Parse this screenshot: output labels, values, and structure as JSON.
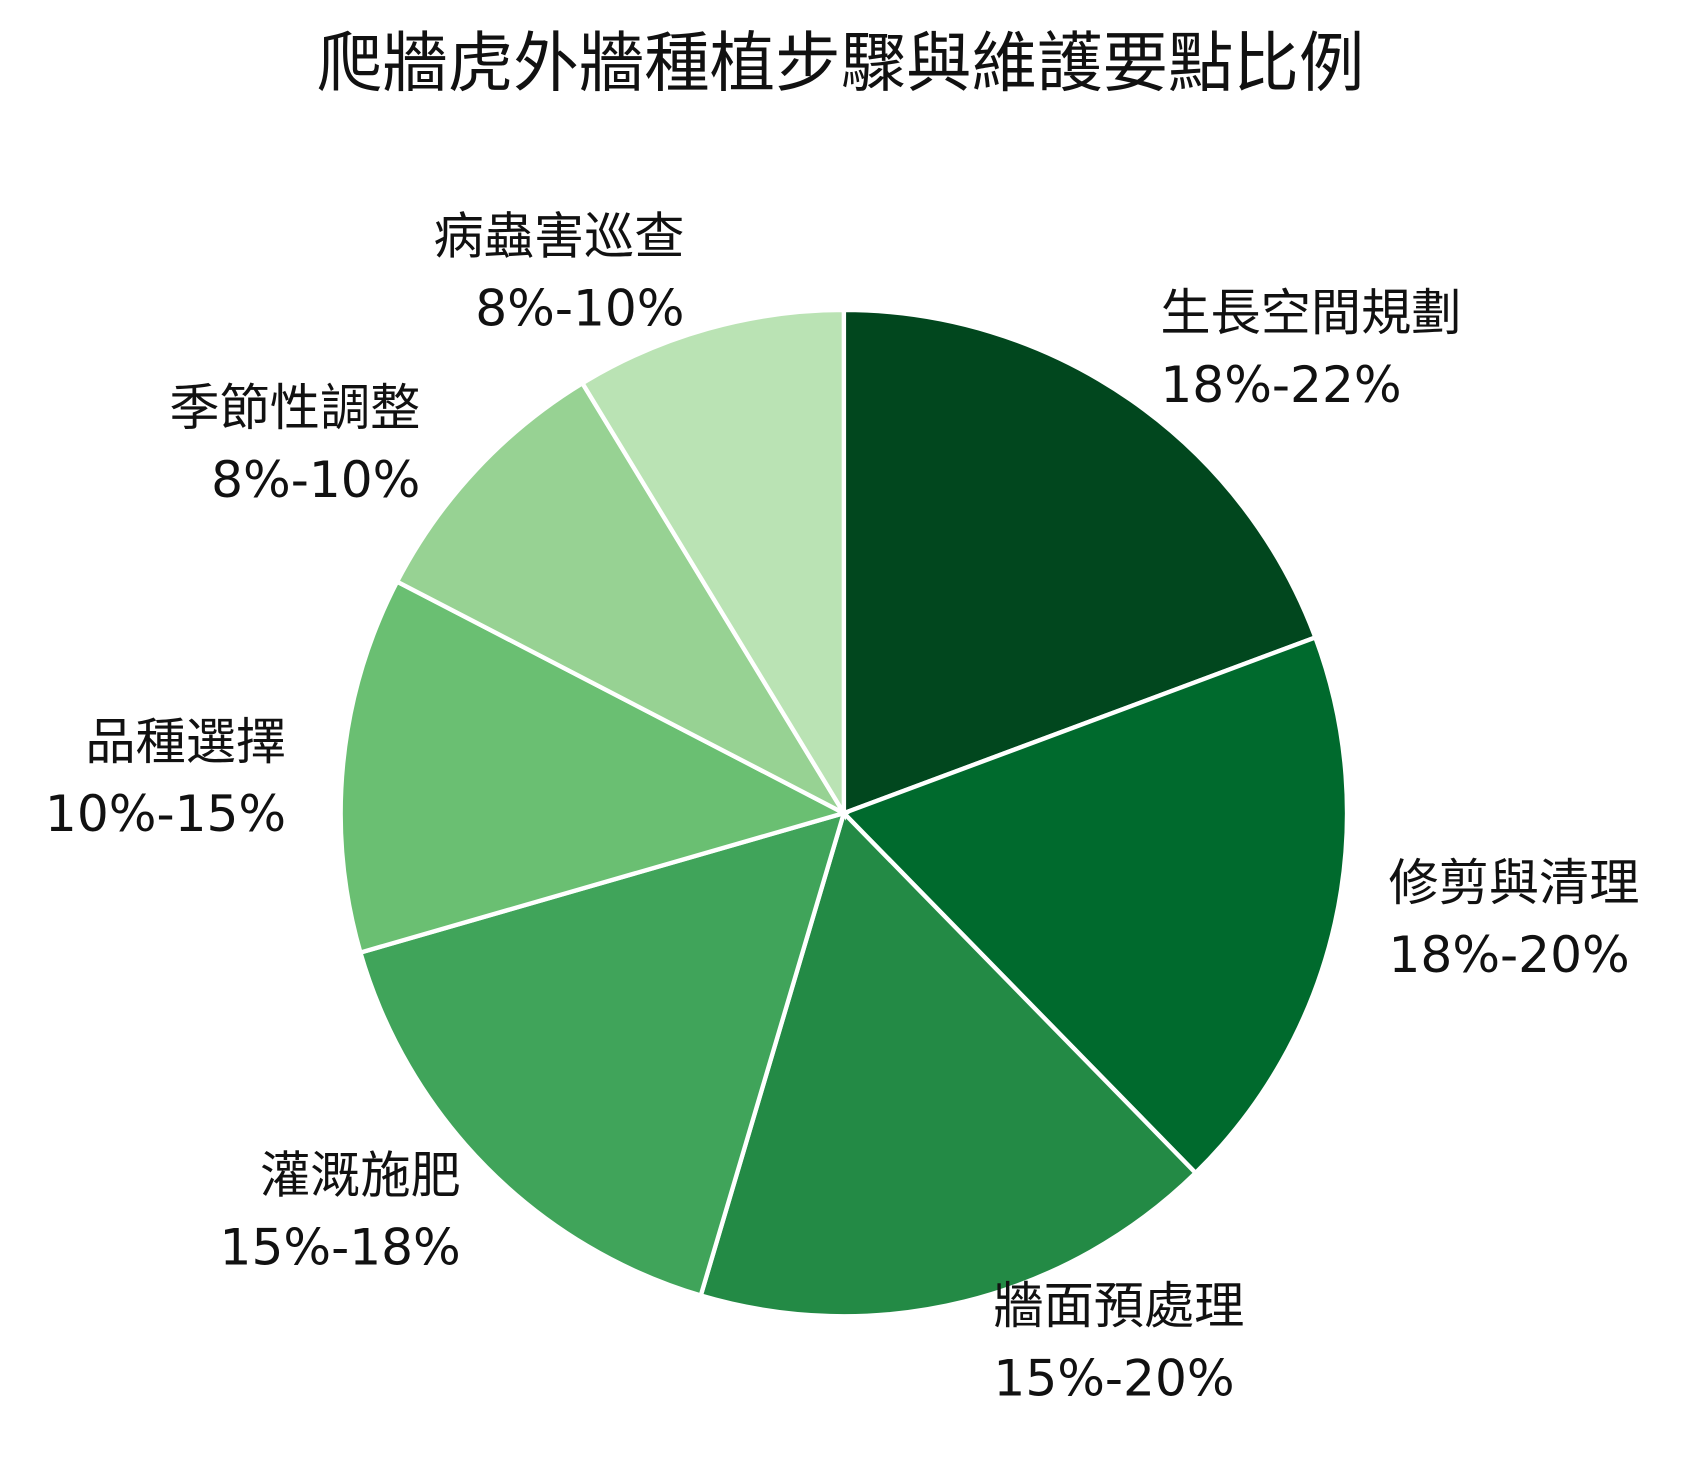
{
  "chart_data": {
    "type": "pie",
    "title": "爬牆虎外牆種植步驟與維護要點比例",
    "categories": [
      "生長空間規劃",
      "修剪與清理",
      "牆面預處理",
      "灌溉施肥",
      "品種選擇",
      "季節性調整",
      "病蟲害巡查"
    ],
    "values": [
      20,
      19,
      17.5,
      16.5,
      12.5,
      9,
      9
    ],
    "value_labels": [
      "18%-22%",
      "18%-20%",
      "15%-20%",
      "15%-18%",
      "10%-15%",
      "8%-10%",
      "8%-10%"
    ],
    "colors": [
      "#01471e",
      "#006a2d",
      "#238a45",
      "#40a45a",
      "#6abf72",
      "#97d293",
      "#bae3b4"
    ]
  }
}
